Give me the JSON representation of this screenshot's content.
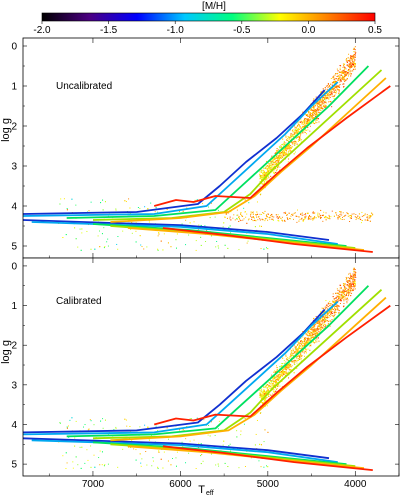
{
  "chart_data": {
    "type": "scatter",
    "colorbar": {
      "title": "[M/H]",
      "ticks": [
        "-2.0",
        "-1.5",
        "-1.0",
        "-0.5",
        "0.0",
        "0.5"
      ],
      "range": [
        -2.0,
        0.5
      ],
      "colormap": [
        "#000000",
        "#4b0082",
        "#0000ff",
        "#00c8ff",
        "#00ff80",
        "#ffff00",
        "#ff8000",
        "#ff0000"
      ]
    },
    "xlabel_main": "T",
    "xlabel_sub": "eff",
    "ylabel": "log g",
    "xlim": [
      7800,
      3500
    ],
    "ylim": [
      5.3,
      -0.2
    ],
    "xticks": [
      {
        "value": 7000,
        "label": "7000"
      },
      {
        "value": 6000,
        "label": "6000"
      },
      {
        "value": 5000,
        "label": "5000"
      },
      {
        "value": 4000,
        "label": "4000"
      }
    ],
    "yticks": [
      {
        "value": 0,
        "label": "0"
      },
      {
        "value": 1,
        "label": "1"
      },
      {
        "value": 2,
        "label": "2"
      },
      {
        "value": 3,
        "label": "3"
      },
      {
        "value": 4,
        "label": "4"
      },
      {
        "value": 5,
        "label": "5"
      }
    ],
    "isochrones": [
      {
        "mh": -1.6,
        "color": "#1030d0",
        "points": [
          [
            7800,
            4.2
          ],
          [
            6500,
            4.15
          ],
          [
            5800,
            3.95
          ],
          [
            5550,
            3.5
          ],
          [
            5250,
            2.9
          ],
          [
            4900,
            2.3
          ],
          [
            4600,
            1.7
          ],
          [
            4350,
            1.1
          ]
        ],
        "ms": [
          [
            7800,
            4.35
          ],
          [
            6000,
            4.48
          ],
          [
            5000,
            4.65
          ],
          [
            4300,
            4.85
          ]
        ]
      },
      {
        "mh": -1.2,
        "color": "#00a8f0",
        "points": [
          [
            7800,
            4.25
          ],
          [
            6300,
            4.2
          ],
          [
            5700,
            4.0
          ],
          [
            5450,
            3.5
          ],
          [
            5150,
            2.9
          ],
          [
            4800,
            2.2
          ],
          [
            4500,
            1.5
          ],
          [
            4200,
            0.9
          ]
        ],
        "ms": [
          [
            7700,
            4.4
          ],
          [
            6000,
            4.52
          ],
          [
            5000,
            4.7
          ],
          [
            4200,
            4.95
          ]
        ]
      },
      {
        "mh": -0.7,
        "color": "#00e060",
        "points": [
          [
            7300,
            4.3
          ],
          [
            6300,
            4.25
          ],
          [
            5600,
            4.1
          ],
          [
            5350,
            3.6
          ],
          [
            5050,
            3.0
          ],
          [
            4700,
            2.3
          ],
          [
            4300,
            1.5
          ],
          [
            3850,
            0.5
          ]
        ],
        "ms": [
          [
            7000,
            4.45
          ],
          [
            5900,
            4.6
          ],
          [
            5000,
            4.8
          ],
          [
            4100,
            5.0
          ]
        ]
      },
      {
        "mh": -0.3,
        "color": "#a0e000",
        "points": [
          [
            7000,
            4.35
          ],
          [
            6100,
            4.3
          ],
          [
            5500,
            4.15
          ],
          [
            5200,
            3.7
          ],
          [
            4950,
            3.1
          ],
          [
            4600,
            2.4
          ],
          [
            4200,
            1.6
          ],
          [
            3700,
            0.6
          ]
        ],
        "ms": [
          [
            6800,
            4.5
          ],
          [
            5800,
            4.65
          ],
          [
            4900,
            4.85
          ],
          [
            4000,
            5.05
          ]
        ]
      },
      {
        "mh": 0.0,
        "color": "#ffb000",
        "points": [
          [
            6800,
            4.4
          ],
          [
            6000,
            4.3
          ],
          [
            5450,
            4.15
          ],
          [
            5150,
            3.75
          ],
          [
            4850,
            3.15
          ],
          [
            4500,
            2.5
          ],
          [
            4100,
            1.7
          ],
          [
            3650,
            0.8
          ]
        ],
        "ms": [
          [
            6600,
            4.55
          ],
          [
            5700,
            4.7
          ],
          [
            4800,
            4.9
          ],
          [
            3900,
            5.1
          ]
        ]
      },
      {
        "mh": 0.3,
        "color": "#ff2000",
        "points": [
          [
            6300,
            4.0
          ],
          [
            6050,
            3.85
          ],
          [
            5850,
            3.9
          ],
          [
            5600,
            3.75
          ],
          [
            5200,
            3.8
          ],
          [
            4900,
            3.2
          ],
          [
            4550,
            2.55
          ],
          [
            4100,
            1.8
          ],
          [
            3600,
            1.0
          ]
        ],
        "ms": [
          [
            6200,
            4.55
          ],
          [
            5500,
            4.72
          ],
          [
            4700,
            4.95
          ],
          [
            3800,
            5.15
          ]
        ]
      }
    ],
    "panels": [
      {
        "label": "Uncalibrated"
      },
      {
        "label": "Calibrated"
      }
    ]
  }
}
